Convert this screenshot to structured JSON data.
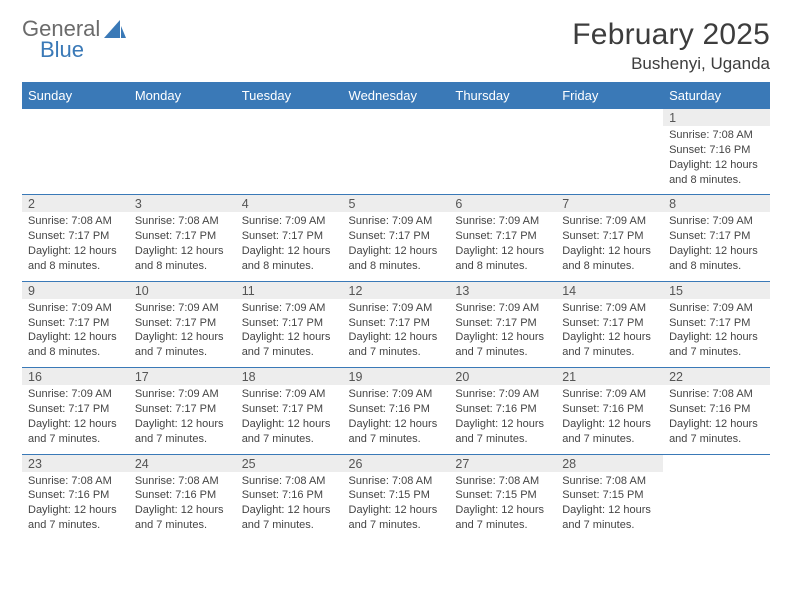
{
  "brand": {
    "word1": "General",
    "word2": "Blue"
  },
  "title": "February 2025",
  "location": "Bushenyi, Uganda",
  "colors": {
    "accent": "#3a79b7",
    "header_bg": "#3a79b7",
    "header_text": "#ffffff",
    "daynum_bg": "#ededed",
    "text": "#444444",
    "title_text": "#3d3d3d",
    "logo_gray": "#6b6b6b"
  },
  "typography": {
    "title_fontsize": 30,
    "location_fontsize": 17,
    "dayhead_fontsize": 13,
    "daynum_fontsize": 12.5,
    "cell_fontsize": 11
  },
  "day_names": [
    "Sunday",
    "Monday",
    "Tuesday",
    "Wednesday",
    "Thursday",
    "Friday",
    "Saturday"
  ],
  "weeks": [
    [
      null,
      null,
      null,
      null,
      null,
      null,
      {
        "n": "1",
        "sr": "7:08 AM",
        "ss": "7:16 PM",
        "dl": "12 hours and 8 minutes."
      }
    ],
    [
      {
        "n": "2",
        "sr": "7:08 AM",
        "ss": "7:17 PM",
        "dl": "12 hours and 8 minutes."
      },
      {
        "n": "3",
        "sr": "7:08 AM",
        "ss": "7:17 PM",
        "dl": "12 hours and 8 minutes."
      },
      {
        "n": "4",
        "sr": "7:09 AM",
        "ss": "7:17 PM",
        "dl": "12 hours and 8 minutes."
      },
      {
        "n": "5",
        "sr": "7:09 AM",
        "ss": "7:17 PM",
        "dl": "12 hours and 8 minutes."
      },
      {
        "n": "6",
        "sr": "7:09 AM",
        "ss": "7:17 PM",
        "dl": "12 hours and 8 minutes."
      },
      {
        "n": "7",
        "sr": "7:09 AM",
        "ss": "7:17 PM",
        "dl": "12 hours and 8 minutes."
      },
      {
        "n": "8",
        "sr": "7:09 AM",
        "ss": "7:17 PM",
        "dl": "12 hours and 8 minutes."
      }
    ],
    [
      {
        "n": "9",
        "sr": "7:09 AM",
        "ss": "7:17 PM",
        "dl": "12 hours and 8 minutes."
      },
      {
        "n": "10",
        "sr": "7:09 AM",
        "ss": "7:17 PM",
        "dl": "12 hours and 7 minutes."
      },
      {
        "n": "11",
        "sr": "7:09 AM",
        "ss": "7:17 PM",
        "dl": "12 hours and 7 minutes."
      },
      {
        "n": "12",
        "sr": "7:09 AM",
        "ss": "7:17 PM",
        "dl": "12 hours and 7 minutes."
      },
      {
        "n": "13",
        "sr": "7:09 AM",
        "ss": "7:17 PM",
        "dl": "12 hours and 7 minutes."
      },
      {
        "n": "14",
        "sr": "7:09 AM",
        "ss": "7:17 PM",
        "dl": "12 hours and 7 minutes."
      },
      {
        "n": "15",
        "sr": "7:09 AM",
        "ss": "7:17 PM",
        "dl": "12 hours and 7 minutes."
      }
    ],
    [
      {
        "n": "16",
        "sr": "7:09 AM",
        "ss": "7:17 PM",
        "dl": "12 hours and 7 minutes."
      },
      {
        "n": "17",
        "sr": "7:09 AM",
        "ss": "7:17 PM",
        "dl": "12 hours and 7 minutes."
      },
      {
        "n": "18",
        "sr": "7:09 AM",
        "ss": "7:17 PM",
        "dl": "12 hours and 7 minutes."
      },
      {
        "n": "19",
        "sr": "7:09 AM",
        "ss": "7:16 PM",
        "dl": "12 hours and 7 minutes."
      },
      {
        "n": "20",
        "sr": "7:09 AM",
        "ss": "7:16 PM",
        "dl": "12 hours and 7 minutes."
      },
      {
        "n": "21",
        "sr": "7:09 AM",
        "ss": "7:16 PM",
        "dl": "12 hours and 7 minutes."
      },
      {
        "n": "22",
        "sr": "7:08 AM",
        "ss": "7:16 PM",
        "dl": "12 hours and 7 minutes."
      }
    ],
    [
      {
        "n": "23",
        "sr": "7:08 AM",
        "ss": "7:16 PM",
        "dl": "12 hours and 7 minutes."
      },
      {
        "n": "24",
        "sr": "7:08 AM",
        "ss": "7:16 PM",
        "dl": "12 hours and 7 minutes."
      },
      {
        "n": "25",
        "sr": "7:08 AM",
        "ss": "7:16 PM",
        "dl": "12 hours and 7 minutes."
      },
      {
        "n": "26",
        "sr": "7:08 AM",
        "ss": "7:15 PM",
        "dl": "12 hours and 7 minutes."
      },
      {
        "n": "27",
        "sr": "7:08 AM",
        "ss": "7:15 PM",
        "dl": "12 hours and 7 minutes."
      },
      {
        "n": "28",
        "sr": "7:08 AM",
        "ss": "7:15 PM",
        "dl": "12 hours and 7 minutes."
      },
      null
    ]
  ],
  "labels": {
    "sunrise": "Sunrise:",
    "sunset": "Sunset:",
    "daylight": "Daylight:"
  }
}
